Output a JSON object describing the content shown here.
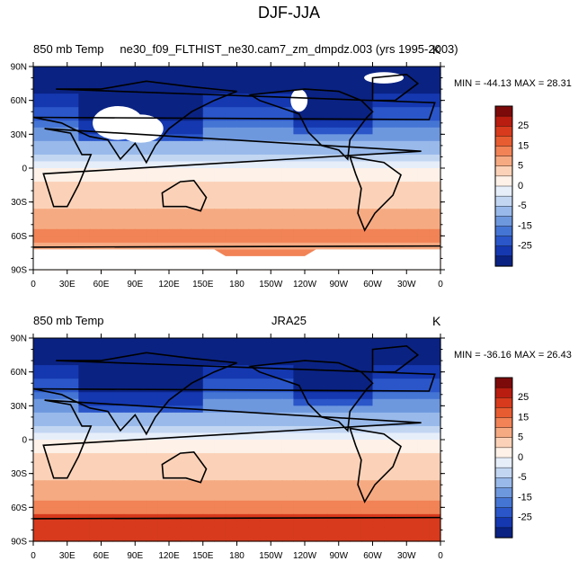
{
  "title": "DJF-JJA",
  "panels": [
    {
      "left_string": "850 mb Temp",
      "center_string": "ne30_f09_FLTHIST_ne30.cam7_zm_dmpdz.003 (yrs 1995-2003)",
      "right_string": "K",
      "min_max": "MIN = -44.13 MAX =  28.31"
    },
    {
      "left_string": "850 mb Temp",
      "center_string": "JRA25",
      "right_string": "K",
      "min_max": "MIN = -36.16 MAX =  26.43"
    }
  ],
  "axes": {
    "y_ticks": [
      "90N",
      "60N",
      "30N",
      "0",
      "30S",
      "60S",
      "90S"
    ],
    "x_ticks": [
      "0",
      "30E",
      "60E",
      "90E",
      "120E",
      "150E",
      "180",
      "150W",
      "120W",
      "90W",
      "60W",
      "30W",
      "0"
    ]
  },
  "colorbar": {
    "labels": [
      "25",
      "15",
      "5",
      "0",
      "-5",
      "-15",
      "-25"
    ],
    "colors": [
      "#7d0a0a",
      "#b81d10",
      "#d73a1d",
      "#e85c32",
      "#f18356",
      "#f6aa82",
      "#fbd2b8",
      "#fdf1e8",
      "#e6eefa",
      "#c2d6f2",
      "#98b9ea",
      "#6e98de",
      "#4575d4",
      "#2a56c9",
      "#1538b0",
      "#0a2282"
    ]
  },
  "map_colors": {
    "missing": "#ffffff",
    "coast": "#000000"
  }
}
